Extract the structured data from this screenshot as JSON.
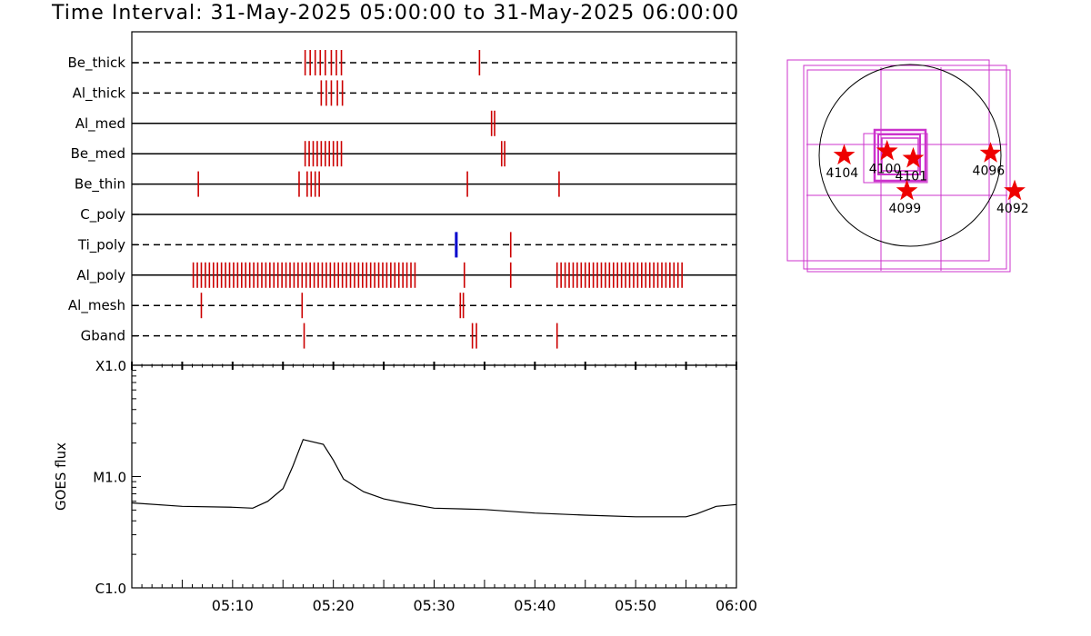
{
  "title": "Time Interval: 31-May-2025 05:00:00 to 31-May-2025 06:00:00",
  "chart_data": [
    {
      "type": "timeline",
      "x_unit": "minutes after 05:00",
      "x_ticks": [
        "05:10",
        "05:20",
        "05:30",
        "05:40",
        "05:50",
        "06:00"
      ],
      "xlim": [
        0,
        60
      ],
      "rows": [
        {
          "name": "Be_thick",
          "line": "dashed",
          "events": [
            {
              "t": 17.2,
              "color": "#cc0000"
            },
            {
              "t": 17.7,
              "color": "#cc0000"
            },
            {
              "t": 18.2,
              "color": "#cc0000"
            },
            {
              "t": 18.7,
              "color": "#cc0000"
            },
            {
              "t": 19.2,
              "color": "#cc0000"
            },
            {
              "t": 19.8,
              "color": "#cc0000"
            },
            {
              "t": 20.3,
              "color": "#cc0000"
            },
            {
              "t": 20.8,
              "color": "#cc0000"
            },
            {
              "t": 34.5,
              "color": "#cc0000"
            }
          ]
        },
        {
          "name": "Al_thick",
          "line": "dashed",
          "events": [
            {
              "t": 18.8,
              "color": "#cc0000"
            },
            {
              "t": 19.3,
              "color": "#cc0000"
            },
            {
              "t": 19.8,
              "color": "#cc0000"
            },
            {
              "t": 20.4,
              "color": "#cc0000"
            },
            {
              "t": 20.9,
              "color": "#cc0000"
            }
          ]
        },
        {
          "name": "Al_med",
          "line": "solid",
          "events": [
            {
              "t": 35.7,
              "color": "#cc0000"
            },
            {
              "t": 36.0,
              "color": "#cc0000"
            }
          ]
        },
        {
          "name": "Be_med",
          "line": "solid",
          "events": [
            {
              "t": 17.2,
              "color": "#cc0000"
            },
            {
              "t": 17.6,
              "color": "#cc0000"
            },
            {
              "t": 18.0,
              "color": "#cc0000"
            },
            {
              "t": 18.4,
              "color": "#cc0000"
            },
            {
              "t": 18.8,
              "color": "#cc0000"
            },
            {
              "t": 19.2,
              "color": "#cc0000"
            },
            {
              "t": 19.6,
              "color": "#cc0000"
            },
            {
              "t": 20.0,
              "color": "#cc0000"
            },
            {
              "t": 20.4,
              "color": "#cc0000"
            },
            {
              "t": 20.8,
              "color": "#cc0000"
            },
            {
              "t": 36.7,
              "color": "#cc0000"
            },
            {
              "t": 37.0,
              "color": "#cc0000"
            }
          ]
        },
        {
          "name": "Be_thin",
          "line": "solid",
          "events": [
            {
              "t": 6.6,
              "color": "#cc0000"
            },
            {
              "t": 16.6,
              "color": "#cc0000"
            },
            {
              "t": 17.4,
              "color": "#cc0000"
            },
            {
              "t": 17.8,
              "color": "#cc0000"
            },
            {
              "t": 18.2,
              "color": "#cc0000"
            },
            {
              "t": 18.6,
              "color": "#cc0000"
            },
            {
              "t": 33.3,
              "color": "#cc0000"
            },
            {
              "t": 42.4,
              "color": "#cc0000"
            }
          ]
        },
        {
          "name": "C_poly",
          "line": "solid",
          "events": []
        },
        {
          "name": "Ti_poly",
          "line": "dashed",
          "events": [
            {
              "t": 32.2,
              "color": "#0000cc"
            },
            {
              "t": 37.6,
              "color": "#cc0000"
            }
          ]
        },
        {
          "name": "Al_poly",
          "line": "solid",
          "events": [
            {
              "t": 6.1,
              "color": "#cc0000"
            },
            {
              "t": 6.5,
              "color": "#cc0000"
            },
            {
              "t": 6.9,
              "color": "#cc0000"
            },
            {
              "t": 7.3,
              "color": "#cc0000"
            },
            {
              "t": 7.7,
              "color": "#cc0000"
            },
            {
              "t": 8.1,
              "color": "#cc0000"
            },
            {
              "t": 8.5,
              "color": "#cc0000"
            },
            {
              "t": 8.9,
              "color": "#cc0000"
            },
            {
              "t": 9.3,
              "color": "#cc0000"
            },
            {
              "t": 9.7,
              "color": "#cc0000"
            },
            {
              "t": 10.1,
              "color": "#cc0000"
            },
            {
              "t": 10.5,
              "color": "#cc0000"
            },
            {
              "t": 10.9,
              "color": "#cc0000"
            },
            {
              "t": 11.3,
              "color": "#cc0000"
            },
            {
              "t": 11.7,
              "color": "#cc0000"
            },
            {
              "t": 12.1,
              "color": "#cc0000"
            },
            {
              "t": 12.5,
              "color": "#cc0000"
            },
            {
              "t": 12.9,
              "color": "#cc0000"
            },
            {
              "t": 13.3,
              "color": "#cc0000"
            },
            {
              "t": 13.7,
              "color": "#cc0000"
            },
            {
              "t": 14.1,
              "color": "#cc0000"
            },
            {
              "t": 14.5,
              "color": "#cc0000"
            },
            {
              "t": 14.9,
              "color": "#cc0000"
            },
            {
              "t": 15.3,
              "color": "#cc0000"
            },
            {
              "t": 15.7,
              "color": "#cc0000"
            },
            {
              "t": 16.1,
              "color": "#cc0000"
            },
            {
              "t": 16.5,
              "color": "#cc0000"
            },
            {
              "t": 16.9,
              "color": "#cc0000"
            },
            {
              "t": 17.3,
              "color": "#cc0000"
            },
            {
              "t": 17.7,
              "color": "#cc0000"
            },
            {
              "t": 18.1,
              "color": "#cc0000"
            },
            {
              "t": 18.5,
              "color": "#cc0000"
            },
            {
              "t": 18.9,
              "color": "#cc0000"
            },
            {
              "t": 19.3,
              "color": "#cc0000"
            },
            {
              "t": 19.7,
              "color": "#cc0000"
            },
            {
              "t": 20.1,
              "color": "#cc0000"
            },
            {
              "t": 20.5,
              "color": "#cc0000"
            },
            {
              "t": 20.9,
              "color": "#cc0000"
            },
            {
              "t": 21.3,
              "color": "#cc0000"
            },
            {
              "t": 21.7,
              "color": "#cc0000"
            },
            {
              "t": 22.1,
              "color": "#cc0000"
            },
            {
              "t": 22.5,
              "color": "#cc0000"
            },
            {
              "t": 22.9,
              "color": "#cc0000"
            },
            {
              "t": 23.3,
              "color": "#cc0000"
            },
            {
              "t": 23.7,
              "color": "#cc0000"
            },
            {
              "t": 24.1,
              "color": "#cc0000"
            },
            {
              "t": 24.5,
              "color": "#cc0000"
            },
            {
              "t": 24.9,
              "color": "#cc0000"
            },
            {
              "t": 25.3,
              "color": "#cc0000"
            },
            {
              "t": 25.7,
              "color": "#cc0000"
            },
            {
              "t": 26.1,
              "color": "#cc0000"
            },
            {
              "t": 26.5,
              "color": "#cc0000"
            },
            {
              "t": 26.9,
              "color": "#cc0000"
            },
            {
              "t": 27.3,
              "color": "#cc0000"
            },
            {
              "t": 27.7,
              "color": "#cc0000"
            },
            {
              "t": 28.1,
              "color": "#cc0000"
            },
            {
              "t": 33.0,
              "color": "#cc0000"
            },
            {
              "t": 37.6,
              "color": "#cc0000"
            },
            {
              "t": 42.2,
              "color": "#cc0000"
            },
            {
              "t": 42.6,
              "color": "#cc0000"
            },
            {
              "t": 43.0,
              "color": "#cc0000"
            },
            {
              "t": 43.4,
              "color": "#cc0000"
            },
            {
              "t": 43.8,
              "color": "#cc0000"
            },
            {
              "t": 44.2,
              "color": "#cc0000"
            },
            {
              "t": 44.6,
              "color": "#cc0000"
            },
            {
              "t": 45.0,
              "color": "#cc0000"
            },
            {
              "t": 45.4,
              "color": "#cc0000"
            },
            {
              "t": 45.8,
              "color": "#cc0000"
            },
            {
              "t": 46.2,
              "color": "#cc0000"
            },
            {
              "t": 46.6,
              "color": "#cc0000"
            },
            {
              "t": 47.0,
              "color": "#cc0000"
            },
            {
              "t": 47.4,
              "color": "#cc0000"
            },
            {
              "t": 47.8,
              "color": "#cc0000"
            },
            {
              "t": 48.2,
              "color": "#cc0000"
            },
            {
              "t": 48.6,
              "color": "#cc0000"
            },
            {
              "t": 49.0,
              "color": "#cc0000"
            },
            {
              "t": 49.4,
              "color": "#cc0000"
            },
            {
              "t": 49.8,
              "color": "#cc0000"
            },
            {
              "t": 50.2,
              "color": "#cc0000"
            },
            {
              "t": 50.6,
              "color": "#cc0000"
            },
            {
              "t": 51.0,
              "color": "#cc0000"
            },
            {
              "t": 51.4,
              "color": "#cc0000"
            },
            {
              "t": 51.8,
              "color": "#cc0000"
            },
            {
              "t": 52.2,
              "color": "#cc0000"
            },
            {
              "t": 52.6,
              "color": "#cc0000"
            },
            {
              "t": 53.0,
              "color": "#cc0000"
            },
            {
              "t": 53.4,
              "color": "#cc0000"
            },
            {
              "t": 53.8,
              "color": "#cc0000"
            },
            {
              "t": 54.2,
              "color": "#cc0000"
            },
            {
              "t": 54.6,
              "color": "#cc0000"
            }
          ]
        },
        {
          "name": "Al_mesh",
          "line": "dashed",
          "events": [
            {
              "t": 6.9,
              "color": "#cc0000"
            },
            {
              "t": 16.9,
              "color": "#cc0000"
            },
            {
              "t": 32.6,
              "color": "#cc0000"
            },
            {
              "t": 32.9,
              "color": "#cc0000"
            }
          ]
        },
        {
          "name": "Gband",
          "line": "dashed",
          "events": [
            {
              "t": 17.1,
              "color": "#cc0000"
            },
            {
              "t": 33.8,
              "color": "#cc0000"
            },
            {
              "t": 34.2,
              "color": "#cc0000"
            },
            {
              "t": 42.2,
              "color": "#cc0000"
            }
          ]
        }
      ]
    },
    {
      "type": "line",
      "ylabel": "GOES flux",
      "y_scale": "log",
      "y_ticks": [
        "X1.0",
        "M1.0",
        "C1.0"
      ],
      "ylim": [
        1e-06,
        0.0001
      ],
      "xlim": [
        0,
        60
      ],
      "x_unit": "minutes after 05:00",
      "x": [
        0,
        5,
        10,
        12,
        13.5,
        15,
        16,
        17,
        19,
        20,
        21,
        23,
        25,
        27,
        30,
        35,
        40,
        45,
        50,
        55,
        56,
        58,
        60
      ],
      "y": [
        5.8e-06,
        5.4e-06,
        5.3e-06,
        5.2e-06,
        6e-06,
        7.8e-06,
        1.25e-05,
        2.15e-05,
        1.95e-05,
        1.4e-05,
        9.5e-06,
        7.3e-06,
        6.3e-06,
        5.8e-06,
        5.2e-06,
        5.05e-06,
        4.7e-06,
        4.5e-06,
        4.35e-06,
        4.35e-06,
        4.6e-06,
        5.4e-06,
        5.6e-06
      ]
    },
    {
      "type": "scatter",
      "subject": "solar disk map",
      "points": [
        {
          "label": "4104",
          "x": -63,
          "y": 0
        },
        {
          "label": "4100",
          "x": -22,
          "y": 4
        },
        {
          "label": "4101",
          "x": 3,
          "y": -3
        },
        {
          "label": "4099",
          "x": -3,
          "y": -34
        },
        {
          "label": "4096",
          "x": 77,
          "y": 2
        },
        {
          "label": "4092",
          "x": 100,
          "y": -34
        }
      ],
      "marker_color": "#ee0000",
      "box_color": "#cc33cc"
    }
  ]
}
